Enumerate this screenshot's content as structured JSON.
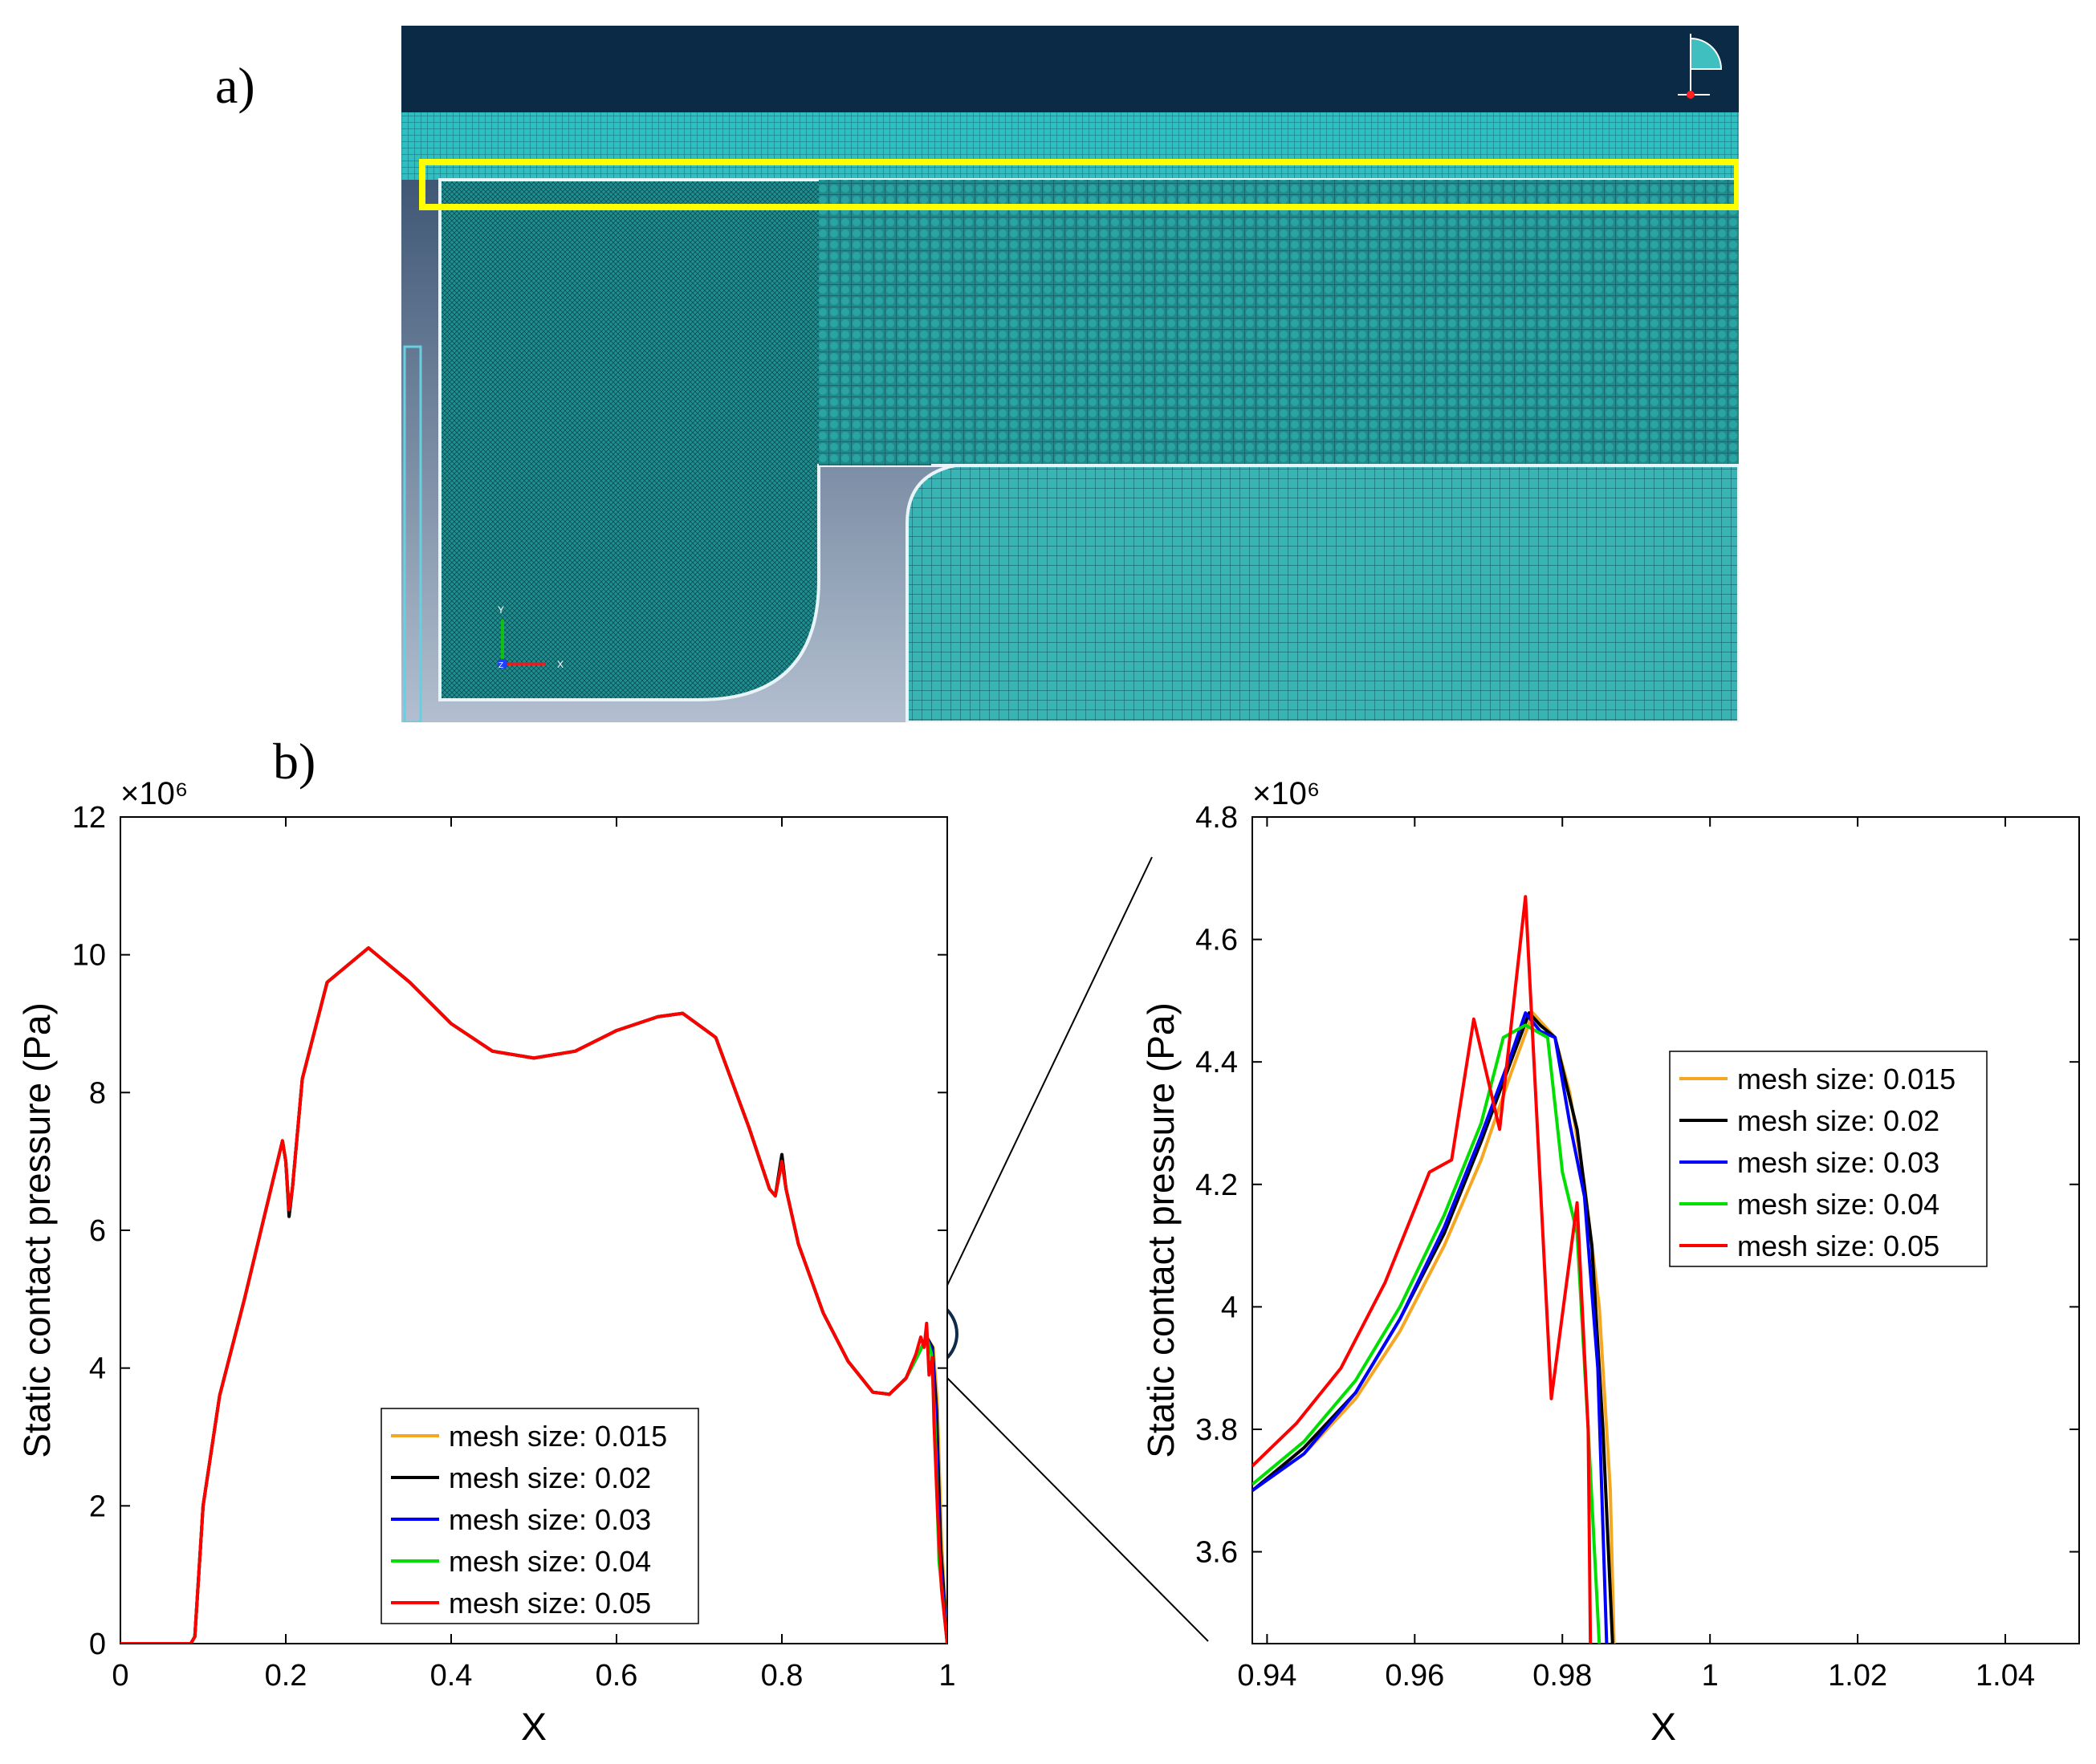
{
  "labels": {
    "panel_a": "a)",
    "panel_b": "b)"
  },
  "mesh_view": {
    "colors": {
      "background_dark": "#0a2a45",
      "mesh": "#1f9a9a",
      "mesh_light": "#3fbfbf",
      "highlight": "#ffff00",
      "gap_top": "#2f4b6a",
      "gap_bottom": "#a8b4c6"
    },
    "triad": {
      "x": "X",
      "y": "Y",
      "z": "Z"
    }
  },
  "chart_data": [
    {
      "type": "line",
      "title": "",
      "xlabel": "X",
      "ylabel": "Static contact pressure (Pa)",
      "exponent_label": "×10⁶",
      "xlim": [
        0,
        1
      ],
      "ylim": [
        0,
        12
      ],
      "xticks": [
        0,
        0.2,
        0.4,
        0.6,
        0.8,
        1
      ],
      "xtick_labels": [
        "0",
        "0.2",
        "0.4",
        "0.6",
        "0.8",
        "1"
      ],
      "yticks": [
        0,
        2,
        4,
        6,
        8,
        10,
        12
      ],
      "ytick_labels": [
        "0",
        "2",
        "4",
        "6",
        "8",
        "10",
        "12"
      ],
      "legend": "bottom-center",
      "series": [
        {
          "name": "mesh size: 0.015",
          "color": "#f5a623",
          "x": [
            0,
            0.085,
            0.09,
            0.1,
            0.12,
            0.15,
            0.18,
            0.196,
            0.2,
            0.204,
            0.208,
            0.22,
            0.25,
            0.3,
            0.35,
            0.4,
            0.45,
            0.5,
            0.55,
            0.6,
            0.65,
            0.68,
            0.72,
            0.76,
            0.785,
            0.792,
            0.8,
            0.805,
            0.82,
            0.85,
            0.88,
            0.91,
            0.93,
            0.95,
            0.965,
            0.975,
            0.983,
            0.988,
            0.993,
            1.0
          ],
          "y": [
            0,
            0,
            0.1,
            2.0,
            3.6,
            5.0,
            6.5,
            7.3,
            7.0,
            6.2,
            6.6,
            8.2,
            9.6,
            10.1,
            9.6,
            9.0,
            8.6,
            8.5,
            8.6,
            8.9,
            9.1,
            9.15,
            8.8,
            7.5,
            6.6,
            6.5,
            7.1,
            6.6,
            5.8,
            4.8,
            4.1,
            3.65,
            3.62,
            3.85,
            4.2,
            4.45,
            4.3,
            3.5,
            1.5,
            0
          ]
        },
        {
          "name": "mesh size: 0.02",
          "color": "#000000",
          "x": [
            0,
            0.085,
            0.09,
            0.1,
            0.12,
            0.15,
            0.18,
            0.196,
            0.2,
            0.204,
            0.208,
            0.22,
            0.25,
            0.3,
            0.35,
            0.4,
            0.45,
            0.5,
            0.55,
            0.6,
            0.65,
            0.68,
            0.72,
            0.76,
            0.785,
            0.792,
            0.8,
            0.805,
            0.82,
            0.85,
            0.88,
            0.91,
            0.93,
            0.95,
            0.965,
            0.975,
            0.982,
            0.987,
            0.992,
            1.0
          ],
          "y": [
            0,
            0,
            0.1,
            2.0,
            3.6,
            5.0,
            6.5,
            7.3,
            7.0,
            6.2,
            6.6,
            8.2,
            9.6,
            10.1,
            9.6,
            9.0,
            8.6,
            8.5,
            8.6,
            8.9,
            9.1,
            9.15,
            8.8,
            7.5,
            6.6,
            6.5,
            7.1,
            6.6,
            5.8,
            4.8,
            4.1,
            3.65,
            3.62,
            3.85,
            4.2,
            4.45,
            4.3,
            3.4,
            1.4,
            0
          ]
        },
        {
          "name": "mesh size: 0.03",
          "color": "#0000ff",
          "x": [
            0,
            0.085,
            0.09,
            0.1,
            0.12,
            0.15,
            0.18,
            0.196,
            0.2,
            0.204,
            0.208,
            0.22,
            0.25,
            0.3,
            0.35,
            0.4,
            0.45,
            0.5,
            0.55,
            0.6,
            0.65,
            0.68,
            0.72,
            0.76,
            0.785,
            0.792,
            0.8,
            0.805,
            0.82,
            0.85,
            0.88,
            0.91,
            0.93,
            0.95,
            0.965,
            0.975,
            0.982,
            0.986,
            0.991,
            1.0
          ],
          "y": [
            0,
            0,
            0.1,
            2.0,
            3.6,
            5.0,
            6.5,
            7.3,
            7.0,
            6.3,
            6.6,
            8.2,
            9.6,
            10.1,
            9.6,
            9.0,
            8.6,
            8.5,
            8.6,
            8.9,
            9.1,
            9.15,
            8.8,
            7.5,
            6.6,
            6.5,
            7.0,
            6.6,
            5.8,
            4.8,
            4.1,
            3.65,
            3.62,
            3.85,
            4.2,
            4.45,
            4.25,
            3.3,
            1.3,
            0
          ]
        },
        {
          "name": "mesh size: 0.04",
          "color": "#00e000",
          "x": [
            0,
            0.085,
            0.09,
            0.1,
            0.12,
            0.15,
            0.18,
            0.196,
            0.2,
            0.204,
            0.208,
            0.22,
            0.25,
            0.3,
            0.35,
            0.4,
            0.45,
            0.5,
            0.55,
            0.6,
            0.65,
            0.68,
            0.72,
            0.76,
            0.785,
            0.792,
            0.8,
            0.805,
            0.82,
            0.85,
            0.88,
            0.91,
            0.93,
            0.95,
            0.965,
            0.975,
            0.981,
            0.985,
            0.99,
            1.0
          ],
          "y": [
            0,
            0,
            0.1,
            2.0,
            3.6,
            5.0,
            6.5,
            7.3,
            7.0,
            6.3,
            6.6,
            8.2,
            9.6,
            10.1,
            9.6,
            9.0,
            8.6,
            8.5,
            8.6,
            8.9,
            9.1,
            9.15,
            8.8,
            7.5,
            6.6,
            6.5,
            7.0,
            6.6,
            5.8,
            4.8,
            4.1,
            3.65,
            3.62,
            3.85,
            4.2,
            4.45,
            4.2,
            3.2,
            1.2,
            0
          ]
        },
        {
          "name": "mesh size: 0.05",
          "color": "#ff0000",
          "x": [
            0,
            0.085,
            0.09,
            0.1,
            0.12,
            0.15,
            0.18,
            0.196,
            0.2,
            0.204,
            0.208,
            0.22,
            0.25,
            0.3,
            0.35,
            0.4,
            0.45,
            0.5,
            0.55,
            0.6,
            0.65,
            0.68,
            0.72,
            0.76,
            0.785,
            0.792,
            0.8,
            0.805,
            0.82,
            0.85,
            0.88,
            0.91,
            0.93,
            0.95,
            0.962,
            0.968,
            0.972,
            0.975,
            0.978,
            0.982,
            0.984,
            0.988,
            0.993,
            1.0
          ],
          "y": [
            0,
            0,
            0.1,
            2.0,
            3.6,
            5.0,
            6.5,
            7.3,
            7.0,
            6.3,
            6.6,
            8.2,
            9.6,
            10.1,
            9.6,
            9.0,
            8.6,
            8.5,
            8.6,
            8.9,
            9.1,
            9.15,
            8.8,
            7.5,
            6.6,
            6.5,
            7.0,
            6.6,
            5.8,
            4.8,
            4.1,
            3.65,
            3.62,
            3.85,
            4.2,
            4.45,
            4.3,
            4.65,
            3.9,
            4.15,
            3.2,
            2.0,
            0.8,
            0
          ]
        }
      ]
    },
    {
      "type": "line",
      "title": "",
      "xlabel": "X",
      "ylabel": "Static contact pressure (Pa)",
      "exponent_label": "×10⁶",
      "xlim": [
        0.938,
        1.05
      ],
      "ylim": [
        3.45,
        4.8
      ],
      "xticks": [
        0.94,
        0.96,
        0.98,
        1,
        1.02,
        1.04
      ],
      "xtick_labels": [
        "0.94",
        "0.96",
        "0.98",
        "1",
        "1.02",
        "1.04"
      ],
      "yticks": [
        3.6,
        3.8,
        4,
        4.2,
        4.4,
        4.6,
        4.8
      ],
      "ytick_labels": [
        "3.6",
        "3.8",
        "4",
        "4.2",
        "4.4",
        "4.6",
        "4.8"
      ],
      "legend": "top-right",
      "series": [
        {
          "name": "mesh size: 0.015",
          "color": "#f5a623",
          "x": [
            0.938,
            0.945,
            0.952,
            0.958,
            0.964,
            0.969,
            0.973,
            0.976,
            0.979,
            0.981,
            0.983,
            0.985,
            0.9865,
            0.987
          ],
          "y": [
            3.7,
            3.76,
            3.85,
            3.96,
            4.1,
            4.24,
            4.38,
            4.48,
            4.44,
            4.35,
            4.2,
            4.0,
            3.7,
            3.45
          ]
        },
        {
          "name": "mesh size: 0.02",
          "color": "#000000",
          "x": [
            0.938,
            0.945,
            0.952,
            0.958,
            0.964,
            0.969,
            0.973,
            0.9755,
            0.977,
            0.979,
            0.982,
            0.984,
            0.9855,
            0.9868
          ],
          "y": [
            3.7,
            3.77,
            3.86,
            3.98,
            4.12,
            4.27,
            4.4,
            4.48,
            4.46,
            4.44,
            4.29,
            4.1,
            3.8,
            3.45
          ]
        },
        {
          "name": "mesh size: 0.03",
          "color": "#0000ff",
          "x": [
            0.938,
            0.945,
            0.952,
            0.958,
            0.964,
            0.969,
            0.973,
            0.975,
            0.977,
            0.979,
            0.981,
            0.983,
            0.9848,
            0.986
          ],
          "y": [
            3.7,
            3.76,
            3.86,
            3.98,
            4.13,
            4.28,
            4.41,
            4.48,
            4.45,
            4.44,
            4.3,
            4.18,
            3.9,
            3.45
          ]
        },
        {
          "name": "mesh size: 0.04",
          "color": "#00e000",
          "x": [
            0.938,
            0.945,
            0.952,
            0.958,
            0.964,
            0.969,
            0.972,
            0.975,
            0.978,
            0.98,
            0.982,
            0.9835,
            0.985
          ],
          "y": [
            3.71,
            3.78,
            3.88,
            4.0,
            4.15,
            4.3,
            4.44,
            4.46,
            4.44,
            4.22,
            4.12,
            3.8,
            3.45
          ]
        },
        {
          "name": "mesh size: 0.05",
          "color": "#ff0000",
          "x": [
            0.938,
            0.944,
            0.95,
            0.956,
            0.962,
            0.965,
            0.968,
            0.9715,
            0.975,
            0.9785,
            0.982,
            0.9835,
            0.9838
          ],
          "y": [
            3.74,
            3.81,
            3.9,
            4.04,
            4.22,
            4.24,
            4.47,
            4.29,
            4.67,
            3.85,
            4.17,
            3.8,
            3.45
          ]
        }
      ]
    }
  ]
}
